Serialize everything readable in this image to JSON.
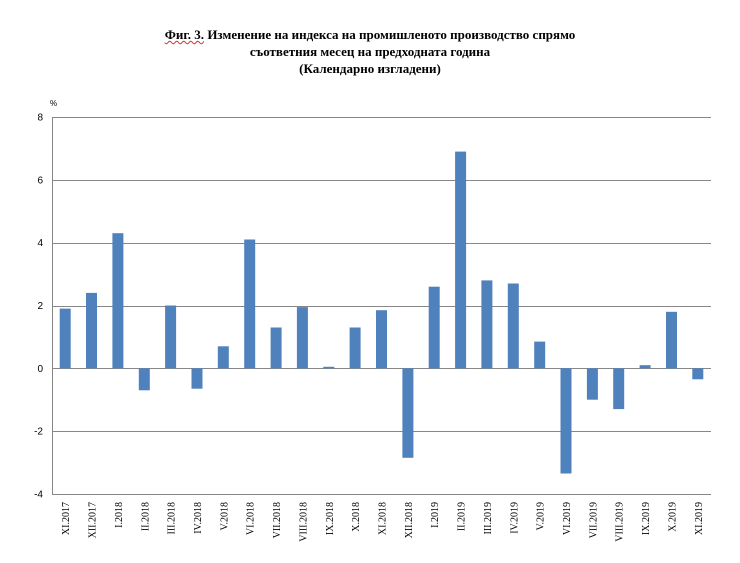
{
  "chart_data": {
    "type": "bar",
    "title_prefix": "Фиг. 3.",
    "title_lines": [
      "Изменение на индекса на промишленото производство спрямо",
      "съответния месец на предходната година",
      "(Календарно изгладени)"
    ],
    "ylabel": "%",
    "xlabel": "",
    "ylim": [
      -4,
      8
    ],
    "yticks": [
      8,
      6,
      4,
      2,
      0,
      -2,
      -4
    ],
    "grid": true,
    "legend": "none",
    "bar_color": "#4f81bd",
    "categories": [
      "XI.2017",
      "XII.2017",
      "I.2018",
      "II.2018",
      "III.2018",
      "IV.2018",
      "V.2018",
      "VI.2018",
      "VII.2018",
      "VIII.2018",
      "IX.2018",
      "X.2018",
      "XI.2018",
      "XII.2018",
      "I.2019",
      "II.2019",
      "III.2019",
      "IV.2019",
      "V.2019",
      "VI.2019",
      "VII.2019",
      "VIII.2019",
      "IX.2019",
      "X.2019",
      "XI.2019"
    ],
    "values": [
      1.9,
      2.4,
      4.3,
      -0.7,
      2.0,
      -0.65,
      0.7,
      4.1,
      1.3,
      1.95,
      0.05,
      1.3,
      1.85,
      -2.85,
      2.6,
      6.9,
      2.8,
      2.7,
      0.85,
      -3.35,
      -1.0,
      -1.3,
      0.1,
      1.8,
      -0.35
    ]
  }
}
